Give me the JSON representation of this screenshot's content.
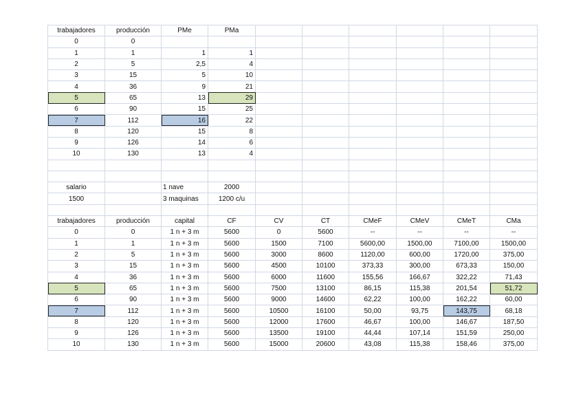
{
  "colors": {
    "highlight_green": "#d7e4bc",
    "highlight_blue": "#b8cce4",
    "grid": "#d0d7e5"
  },
  "production_table": {
    "headers": [
      "trabajadores",
      "producción",
      "PMe",
      "PMa"
    ],
    "rows": [
      [
        "0",
        "0",
        "",
        ""
      ],
      [
        "1",
        "1",
        "1",
        "1"
      ],
      [
        "2",
        "5",
        "2,5",
        "4"
      ],
      [
        "3",
        "15",
        "5",
        "10"
      ],
      [
        "4",
        "36",
        "9",
        "21"
      ],
      [
        "5",
        "65",
        "13",
        "29"
      ],
      [
        "6",
        "90",
        "15",
        "25"
      ],
      [
        "7",
        "112",
        "16",
        "22"
      ],
      [
        "8",
        "120",
        "15",
        "8"
      ],
      [
        "9",
        "126",
        "14",
        "6"
      ],
      [
        "10",
        "130",
        "13",
        "4"
      ]
    ]
  },
  "inputs": {
    "salario_label": "salario",
    "salario_value": "1500",
    "nave_label": "1 nave",
    "nave_value": "2000",
    "maquinas_label": "3 maquinas",
    "maquinas_value": "1200 c/u"
  },
  "cost_table": {
    "headers": [
      "trabajadores",
      "producción",
      "capital",
      "CF",
      "CV",
      "CT",
      "CMeF",
      "CMeV",
      "CMeT",
      "CMa"
    ],
    "rows": [
      [
        "0",
        "0",
        "1 n + 3 m",
        "5600",
        "0",
        "5600",
        "--",
        "--",
        "--",
        "--"
      ],
      [
        "1",
        "1",
        "1 n + 3 m",
        "5600",
        "1500",
        "7100",
        "5600,00",
        "1500,00",
        "7100,00",
        "1500,00"
      ],
      [
        "2",
        "5",
        "1 n + 3 m",
        "5600",
        "3000",
        "8600",
        "1120,00",
        "600,00",
        "1720,00",
        "375,00"
      ],
      [
        "3",
        "15",
        "1 n + 3 m",
        "5600",
        "4500",
        "10100",
        "373,33",
        "300,00",
        "673,33",
        "150,00"
      ],
      [
        "4",
        "36",
        "1 n + 3 m",
        "5600",
        "6000",
        "11600",
        "155,56",
        "166,67",
        "322,22",
        "71,43"
      ],
      [
        "5",
        "65",
        "1 n + 3 m",
        "5600",
        "7500",
        "13100",
        "86,15",
        "115,38",
        "201,54",
        "51,72"
      ],
      [
        "6",
        "90",
        "1 n + 3 m",
        "5600",
        "9000",
        "14600",
        "62,22",
        "100,00",
        "162,22",
        "60,00"
      ],
      [
        "7",
        "112",
        "1 n + 3 m",
        "5600",
        "10500",
        "16100",
        "50,00",
        "93,75",
        "143,75",
        "68,18"
      ],
      [
        "8",
        "120",
        "1 n + 3 m",
        "5600",
        "12000",
        "17600",
        "46,67",
        "100,00",
        "146,67",
        "187,50"
      ],
      [
        "9",
        "126",
        "1 n + 3 m",
        "5600",
        "13500",
        "19100",
        "44,44",
        "107,14",
        "151,59",
        "250,00"
      ],
      [
        "10",
        "130",
        "1 n + 3 m",
        "5600",
        "15000",
        "20600",
        "43,08",
        "115,38",
        "158,46",
        "375,00"
      ]
    ]
  }
}
